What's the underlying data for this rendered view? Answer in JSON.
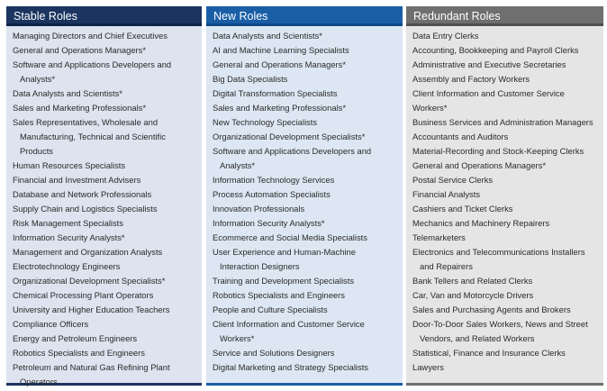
{
  "columns": [
    {
      "title": "Stable Roles",
      "items": [
        [
          "Managing Directors and Chief Executives"
        ],
        [
          "General and Operations Managers*"
        ],
        [
          "Software and Applications Developers and",
          "Analysts*"
        ],
        [
          "Data Analysts and Scientists*"
        ],
        [
          "Sales and Marketing Professionals*"
        ],
        [
          "Sales Representatives, Wholesale and",
          "Manufacturing, Technical and Scientific",
          "Products"
        ],
        [
          "Human Resources Specialists"
        ],
        [
          "Financial and Investment Advisers"
        ],
        [
          "Database and Network Professionals"
        ],
        [
          "Supply Chain and Logistics Specialists"
        ],
        [
          "Risk Management Specialists"
        ],
        [
          "Information Security Analysts*"
        ],
        [
          "Management and Organization Analysts"
        ],
        [
          "Electrotechnology Engineers"
        ],
        [
          "Organizational Development Specialists*"
        ],
        [
          "Chemical Processing Plant Operators"
        ],
        [
          "University and Higher Education Teachers"
        ],
        [
          "Compliance Officers"
        ],
        [
          "Energy and Petroleum Engineers"
        ],
        [
          "Robotics Specialists and Engineers"
        ],
        [
          "Petroleum and Natural Gas Refining Plant",
          "Operators"
        ]
      ]
    },
    {
      "title": "New Roles",
      "items": [
        [
          "Data Analysts and Scientists*"
        ],
        [
          "AI and Machine Learning Specialists"
        ],
        [
          "General and Operations Managers*"
        ],
        [
          "Big Data Specialists"
        ],
        [
          "Digital Transformation Specialists"
        ],
        [
          "Sales and Marketing Professionals*"
        ],
        [
          "New Technology Specialists"
        ],
        [
          "Organizational Development Specialists*"
        ],
        [
          "Software and Applications Developers and",
          "Analysts*"
        ],
        [
          "Information Technology Services"
        ],
        [
          "Process Automation Specialists"
        ],
        [
          "Innovation Professionals"
        ],
        [
          "Information Security Analysts*"
        ],
        [
          "Ecommerce and Social Media Specialists"
        ],
        [
          "User Experience and Human-Machine",
          "Interaction Designers"
        ],
        [
          "Training and Development Specialists"
        ],
        [
          "Robotics Specialists and Engineers"
        ],
        [
          "People and Culture Specialists"
        ],
        [
          "Client Information and Customer Service",
          "Workers*"
        ],
        [
          "Service and Solutions Designers"
        ],
        [
          "Digital Marketing and Strategy Specialists"
        ]
      ]
    },
    {
      "title": "Redundant Roles",
      "items": [
        [
          "Data Entry Clerks"
        ],
        [
          "Accounting, Bookkeeping and Payroll Clerks"
        ],
        [
          "Administrative and Executive Secretaries"
        ],
        [
          "Assembly and Factory Workers"
        ],
        [
          "Client Information and Customer Service Workers*"
        ],
        [
          "Business Services and Administration Managers"
        ],
        [
          "Accountants and Auditors"
        ],
        [
          "Material-Recording and Stock-Keeping Clerks"
        ],
        [
          "General and Operations Managers*"
        ],
        [
          "Postal Service Clerks"
        ],
        [
          "Financial Analysts"
        ],
        [
          "Cashiers and Ticket Clerks"
        ],
        [
          "Mechanics and Machinery Repairers"
        ],
        [
          "Telemarketers"
        ],
        [
          "Electronics and Telecommunications Installers",
          "and Repairers"
        ],
        [
          "Bank Tellers and Related Clerks"
        ],
        [
          "Car, Van and Motorcycle Drivers"
        ],
        [
          "Sales and Purchasing Agents and Brokers"
        ],
        [
          "Door-To-Door Sales Workers, News and Street",
          "Vendors, and Related Workers"
        ],
        [
          "Statistical, Finance and Insurance Clerks"
        ],
        [
          "Lawyers"
        ]
      ]
    }
  ]
}
